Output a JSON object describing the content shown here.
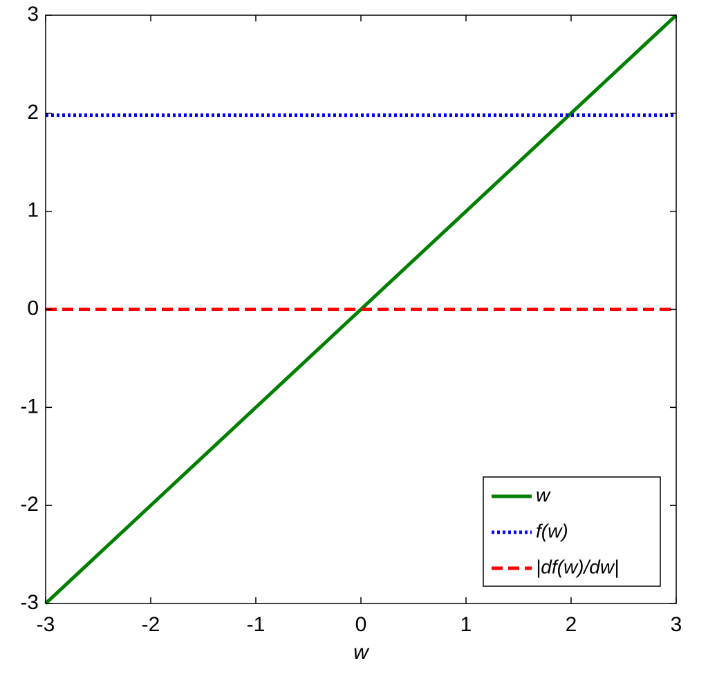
{
  "chart_data": {
    "type": "line",
    "x_label": "w",
    "x": [
      -3,
      3
    ],
    "series": [
      {
        "name": "w",
        "color": "#007f00",
        "style": "solid",
        "values": [
          -3,
          3
        ]
      },
      {
        "name": "f(w)",
        "color": "#0000ff",
        "style": "dotted",
        "values": [
          1.98,
          1.98
        ]
      },
      {
        "name": "|df(w)/dw|",
        "color": "#ff0000",
        "style": "dashed",
        "values": [
          0,
          0
        ]
      }
    ],
    "xlim": [
      -3,
      3
    ],
    "xticks": [
      -3,
      -2,
      -1,
      0,
      1,
      2,
      3
    ],
    "ylim": [
      -3,
      3
    ],
    "yticks": [
      -3,
      -2,
      -1,
      0,
      1,
      2,
      3
    ],
    "grid": false,
    "legend": "lower right"
  }
}
